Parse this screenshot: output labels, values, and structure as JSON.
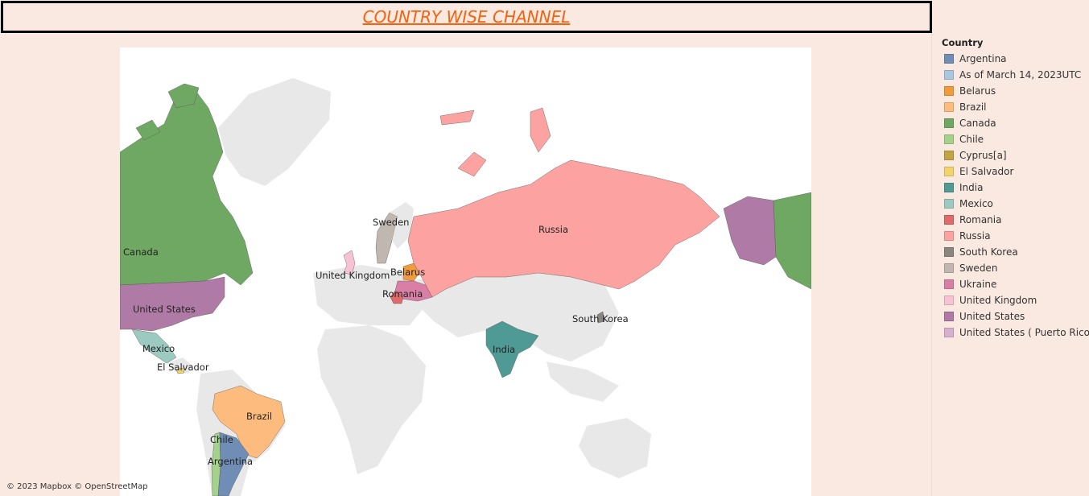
{
  "title": "COUNTRY WISE CHANNEL",
  "legend": {
    "title": "Country",
    "items": [
      {
        "label": "Argentina",
        "color": "#6f8db5"
      },
      {
        "label": "As of March 14, 2023UTC",
        "color": "#a9c8e0"
      },
      {
        "label": "Belarus",
        "color": "#f29b3c"
      },
      {
        "label": "Brazil",
        "color": "#fdbc7d"
      },
      {
        "label": "Canada",
        "color": "#6fa862"
      },
      {
        "label": "Chile",
        "color": "#a4d28a"
      },
      {
        "label": "Cyprus[a]",
        "color": "#c1a446"
      },
      {
        "label": "El Salvador",
        "color": "#f3d36c"
      },
      {
        "label": "India",
        "color": "#4f9a94"
      },
      {
        "label": "Mexico",
        "color": "#9cc9c0"
      },
      {
        "label": "Romania",
        "color": "#e06a6a"
      },
      {
        "label": "Russia",
        "color": "#fca3a1"
      },
      {
        "label": "South Korea",
        "color": "#8b8580"
      },
      {
        "label": "Sweden",
        "color": "#c1b7b1"
      },
      {
        "label": "Ukraine",
        "color": "#d97fa5"
      },
      {
        "label": "United Kingdom",
        "color": "#f7c3d3"
      },
      {
        "label": "United States",
        "color": "#b07aa6"
      },
      {
        "label": "United States ( Puerto Rico)",
        "color": "#d5b0cf"
      }
    ]
  },
  "map_labels": {
    "canada": "Canada",
    "united_states": "United States",
    "mexico": "Mexico",
    "el_salvador": "El Salvador",
    "brazil": "Brazil",
    "chile": "Chile",
    "argentina": "Argentina",
    "sweden": "Sweden",
    "united_kingdom": "United Kingdom",
    "belarus": "Belarus",
    "romania": "Romania",
    "russia": "Russia",
    "india": "India",
    "south_korea": "South Korea"
  },
  "attribution": "© 2023 Mapbox © OpenStreetMap"
}
